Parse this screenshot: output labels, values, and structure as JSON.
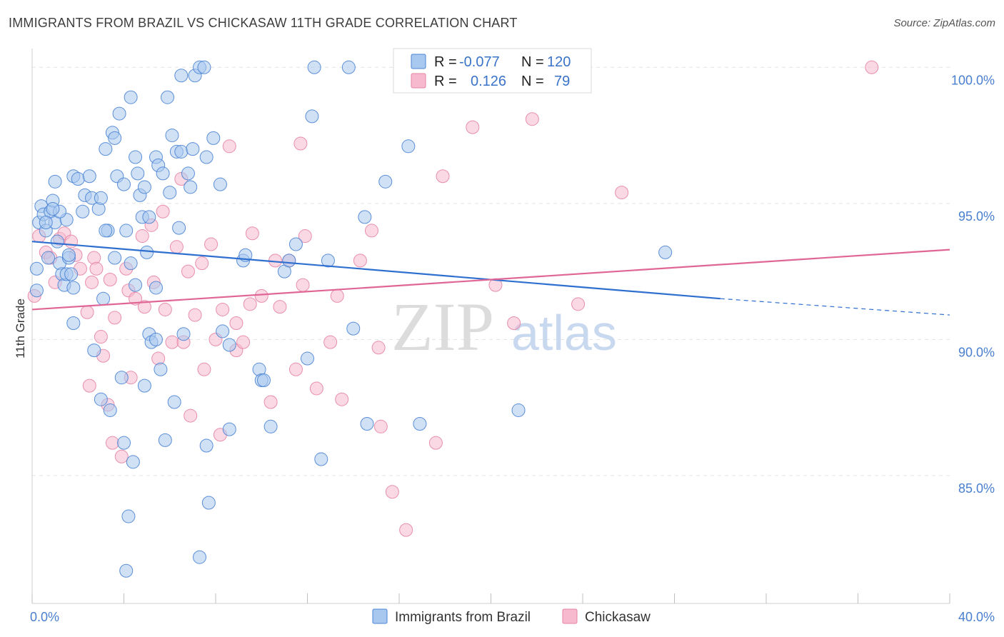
{
  "title": "IMMIGRANTS FROM BRAZIL VS CHICKASAW 11TH GRADE CORRELATION CHART",
  "source": "Source: ZipAtlas.com",
  "watermark": {
    "part1": "ZIP",
    "part2": "atlas"
  },
  "colors": {
    "blue_fill": "#a9c8ef",
    "blue_stroke": "#4b84d4",
    "blue_line": "#2f6fcf",
    "pink_fill": "#f6b9cd",
    "pink_stroke": "#e684a5",
    "pink_line": "#e06795",
    "grid": "#e3e3e3",
    "tick_text": "#4a7fcf"
  },
  "legend": {
    "rows": [
      {
        "r_label": "R =",
        "r_value": "-0.077",
        "n_label": "N =",
        "n_value": "120"
      },
      {
        "r_label": "R =",
        "r_value": "0.126",
        "n_label": "N =",
        "n_value": "79"
      }
    ]
  },
  "chart_data": {
    "type": "scatter",
    "ylabel": "11th Grade",
    "xlim": [
      0,
      40
    ],
    "ylim": [
      80.3,
      100.9
    ],
    "x_ticks": [
      "0.0%",
      "40.0%"
    ],
    "y_ticks": [
      {
        "value": 100,
        "label": "100.0%"
      },
      {
        "value": 95,
        "label": "95.0%"
      },
      {
        "value": 90,
        "label": "90.0%"
      },
      {
        "value": 85,
        "label": "85.0%"
      }
    ],
    "grid": true,
    "series": [
      {
        "name": "Immigrants from Brazil",
        "color": "blue",
        "trend": {
          "x0": 0,
          "y0": 93.6,
          "x1": 30,
          "y1": 91.5,
          "dash_to_x": 40,
          "dash_to_y": 90.9
        },
        "points": [
          [
            0.2,
            92.6
          ],
          [
            0.2,
            91.8
          ],
          [
            0.3,
            94.3
          ],
          [
            0.4,
            94.9
          ],
          [
            0.5,
            94.6
          ],
          [
            0.6,
            94.0
          ],
          [
            0.7,
            93.0
          ],
          [
            0.8,
            94.7
          ],
          [
            0.9,
            95.1
          ],
          [
            1.0,
            94.3
          ],
          [
            1.1,
            93.6
          ],
          [
            1.2,
            92.8
          ],
          [
            1.3,
            92.4
          ],
          [
            1.4,
            92.0
          ],
          [
            1.5,
            92.4
          ],
          [
            1.6,
            93.0
          ],
          [
            1.7,
            92.4
          ],
          [
            1.8,
            91.9
          ],
          [
            1.0,
            95.8
          ],
          [
            1.5,
            94.4
          ],
          [
            1.8,
            96.0
          ],
          [
            2.0,
            95.9
          ],
          [
            2.2,
            94.7
          ],
          [
            2.3,
            95.3
          ],
          [
            2.5,
            96.0
          ],
          [
            2.6,
            95.2
          ],
          [
            2.9,
            94.8
          ],
          [
            3.0,
            95.2
          ],
          [
            3.3,
            94.0
          ],
          [
            3.1,
            91.5
          ],
          [
            3.2,
            97.0
          ],
          [
            3.5,
            97.6
          ],
          [
            3.6,
            97.4
          ],
          [
            3.7,
            96.0
          ],
          [
            3.8,
            98.3
          ],
          [
            4.0,
            95.7
          ],
          [
            4.3,
            98.9
          ],
          [
            4.5,
            96.7
          ],
          [
            4.6,
            96.1
          ],
          [
            4.7,
            95.3
          ],
          [
            4.8,
            94.5
          ],
          [
            4.9,
            95.6
          ],
          [
            5.0,
            93.2
          ],
          [
            5.4,
            96.7
          ],
          [
            5.5,
            96.4
          ],
          [
            5.7,
            96.1
          ],
          [
            6.0,
            95.4
          ],
          [
            6.1,
            97.5
          ],
          [
            6.3,
            96.9
          ],
          [
            6.5,
            96.9
          ],
          [
            6.8,
            96.1
          ],
          [
            6.9,
            95.6
          ],
          [
            7.1,
            99.7
          ],
          [
            7.3,
            100.0
          ],
          [
            7.5,
            100.0
          ],
          [
            7.6,
            96.7
          ],
          [
            7.9,
            97.4
          ],
          [
            8.2,
            95.7
          ],
          [
            5.9,
            98.9
          ],
          [
            3.2,
            94.0
          ],
          [
            3.6,
            93.0
          ],
          [
            4.1,
            94.0
          ],
          [
            4.3,
            92.8
          ],
          [
            5.1,
            94.5
          ],
          [
            5.4,
            91.9
          ],
          [
            6.4,
            94.1
          ],
          [
            1.8,
            90.6
          ],
          [
            2.7,
            89.6
          ],
          [
            3.0,
            87.8
          ],
          [
            3.4,
            87.4
          ],
          [
            3.9,
            88.6
          ],
          [
            4.0,
            86.2
          ],
          [
            4.4,
            85.5
          ],
          [
            4.5,
            92.0
          ],
          [
            4.9,
            88.3
          ],
          [
            5.1,
            90.2
          ],
          [
            5.2,
            89.9
          ],
          [
            5.4,
            90.0
          ],
          [
            5.6,
            88.9
          ],
          [
            5.8,
            86.3
          ],
          [
            6.2,
            87.7
          ],
          [
            6.6,
            90.2
          ],
          [
            7.6,
            86.1
          ],
          [
            7.7,
            84.0
          ],
          [
            7.3,
            82.0
          ],
          [
            4.2,
            83.5
          ],
          [
            4.1,
            81.5
          ],
          [
            8.3,
            90.3
          ],
          [
            8.6,
            89.8
          ],
          [
            8.6,
            86.7
          ],
          [
            9.2,
            92.9
          ],
          [
            9.9,
            88.9
          ],
          [
            10.0,
            88.5
          ],
          [
            10.1,
            88.5
          ],
          [
            10.4,
            86.8
          ],
          [
            11.0,
            92.5
          ],
          [
            11.2,
            92.9
          ],
          [
            11.5,
            93.5
          ],
          [
            12.0,
            89.3
          ],
          [
            12.2,
            98.2
          ],
          [
            12.3,
            100.0
          ],
          [
            12.6,
            85.6
          ],
          [
            12.9,
            92.9
          ],
          [
            13.8,
            100.0
          ],
          [
            14.0,
            90.4
          ],
          [
            14.6,
            86.9
          ],
          [
            14.5,
            94.5
          ],
          [
            15.4,
            95.8
          ],
          [
            16.4,
            97.1
          ],
          [
            16.2,
            100.0
          ],
          [
            16.9,
            86.9
          ],
          [
            21.2,
            87.4
          ],
          [
            27.6,
            93.2
          ],
          [
            9.3,
            93.1
          ],
          [
            7.0,
            97.0
          ],
          [
            6.5,
            99.7
          ],
          [
            1.2,
            94.7
          ],
          [
            0.6,
            94.3
          ],
          [
            0.9,
            94.8
          ],
          [
            1.6,
            93.1
          ]
        ]
      },
      {
        "name": "Chickasaw",
        "color": "pink",
        "trend": {
          "x0": 0,
          "y0": 91.1,
          "x1": 40,
          "y1": 93.3
        },
        "points": [
          [
            0.1,
            91.6
          ],
          [
            0.3,
            93.8
          ],
          [
            0.6,
            93.2
          ],
          [
            0.8,
            93.0
          ],
          [
            1.0,
            92.1
          ],
          [
            1.2,
            93.7
          ],
          [
            1.4,
            93.9
          ],
          [
            1.7,
            93.6
          ],
          [
            1.9,
            93.1
          ],
          [
            2.1,
            92.6
          ],
          [
            2.4,
            91.0
          ],
          [
            2.5,
            88.3
          ],
          [
            2.6,
            92.1
          ],
          [
            2.7,
            93.0
          ],
          [
            2.8,
            92.6
          ],
          [
            3.0,
            90.1
          ],
          [
            3.1,
            89.4
          ],
          [
            3.3,
            87.6
          ],
          [
            3.4,
            92.2
          ],
          [
            3.5,
            86.2
          ],
          [
            3.6,
            90.8
          ],
          [
            3.9,
            85.7
          ],
          [
            4.1,
            92.6
          ],
          [
            4.2,
            91.8
          ],
          [
            4.3,
            88.6
          ],
          [
            4.5,
            91.5
          ],
          [
            4.8,
            93.8
          ],
          [
            4.9,
            91.2
          ],
          [
            5.2,
            94.2
          ],
          [
            5.3,
            92.1
          ],
          [
            5.5,
            89.3
          ],
          [
            5.7,
            94.7
          ],
          [
            5.8,
            91.1
          ],
          [
            6.1,
            89.9
          ],
          [
            6.3,
            93.4
          ],
          [
            6.5,
            95.9
          ],
          [
            6.6,
            89.9
          ],
          [
            6.8,
            92.5
          ],
          [
            6.9,
            87.2
          ],
          [
            7.1,
            90.9
          ],
          [
            7.4,
            92.8
          ],
          [
            7.5,
            88.9
          ],
          [
            7.8,
            93.5
          ],
          [
            8.0,
            90.0
          ],
          [
            8.2,
            86.5
          ],
          [
            8.3,
            91.1
          ],
          [
            8.6,
            97.1
          ],
          [
            8.9,
            90.6
          ],
          [
            8.9,
            89.6
          ],
          [
            9.2,
            89.9
          ],
          [
            9.5,
            91.3
          ],
          [
            9.6,
            93.9
          ],
          [
            10.0,
            91.6
          ],
          [
            10.4,
            87.7
          ],
          [
            10.6,
            92.9
          ],
          [
            10.8,
            91.2
          ],
          [
            11.2,
            92.9
          ],
          [
            11.5,
            88.9
          ],
          [
            11.7,
            97.2
          ],
          [
            11.8,
            92.0
          ],
          [
            11.9,
            93.8
          ],
          [
            12.4,
            88.2
          ],
          [
            13.0,
            89.9
          ],
          [
            13.3,
            91.6
          ],
          [
            13.5,
            87.8
          ],
          [
            14.3,
            92.9
          ],
          [
            14.8,
            94.0
          ],
          [
            15.1,
            89.7
          ],
          [
            15.2,
            86.8
          ],
          [
            15.7,
            84.4
          ],
          [
            16.3,
            83.0
          ],
          [
            17.6,
            86.2
          ],
          [
            17.9,
            96.0
          ],
          [
            19.2,
            97.8
          ],
          [
            20.2,
            92.0
          ],
          [
            21.0,
            90.6
          ],
          [
            21.8,
            98.1
          ],
          [
            23.8,
            91.3
          ],
          [
            25.7,
            95.4
          ],
          [
            36.6,
            100.0
          ]
        ]
      }
    ]
  },
  "bottom_legend": [
    {
      "label": "Immigrants from Brazil"
    },
    {
      "label": "Chickasaw"
    }
  ]
}
